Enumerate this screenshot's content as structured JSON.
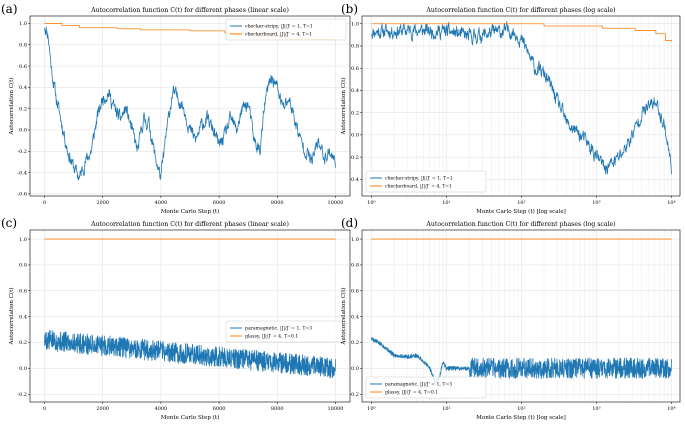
{
  "chart_data": [
    {
      "type": "line",
      "panel": "(a)",
      "title": "Autocorrelation function C(t) for different phases (linear scale)",
      "xlabel": "Monte Carlo Step (t)",
      "ylabel": "Autocorrelation C(t)",
      "xscale": "linear",
      "xlim": [
        -500,
        10500
      ],
      "ylim": [
        -0.62,
        1.07
      ],
      "xticks": [
        0,
        2000,
        4000,
        6000,
        8000,
        10000
      ],
      "yticks": [
        -0.6,
        -0.4,
        -0.2,
        0.0,
        0.2,
        0.4,
        0.6,
        0.8,
        1.0
      ],
      "xtick_labels": [
        "0",
        "2000",
        "4000",
        "6000",
        "8000",
        "10000"
      ],
      "ytick_labels": [
        "-0.6",
        "-0.4",
        "-0.2",
        "0.0",
        "0.2",
        "0.4",
        "0.6",
        "0.8",
        "1.0"
      ],
      "legend_position": "top-right",
      "series": [
        {
          "name": "checker-stripy, |J|/J' = 1, T=1",
          "color": "#1f77b4",
          "style": "noisy",
          "noise": 0.05,
          "seed": 11,
          "anchors": [
            [
              0,
              0.98
            ],
            [
              120,
              0.9
            ],
            [
              250,
              0.55
            ],
            [
              400,
              0.3
            ],
            [
              600,
              0.05
            ],
            [
              800,
              -0.2
            ],
            [
              1000,
              -0.35
            ],
            [
              1200,
              -0.45
            ],
            [
              1400,
              -0.3
            ],
            [
              1600,
              -0.2
            ],
            [
              1800,
              0.1
            ],
            [
              2000,
              0.3
            ],
            [
              2200,
              0.35
            ],
            [
              2400,
              0.2
            ],
            [
              2600,
              0.1
            ],
            [
              2800,
              0.2
            ],
            [
              3000,
              0.0
            ],
            [
              3200,
              -0.2
            ],
            [
              3400,
              0.1
            ],
            [
              3600,
              0.05
            ],
            [
              3800,
              -0.25
            ],
            [
              4000,
              -0.45
            ],
            [
              4200,
              0.0
            ],
            [
              4400,
              0.35
            ],
            [
              4600,
              0.3
            ],
            [
              4800,
              0.2
            ],
            [
              5000,
              0.0
            ],
            [
              5200,
              -0.1
            ],
            [
              5400,
              0.05
            ],
            [
              5600,
              0.1
            ],
            [
              5800,
              0.0
            ],
            [
              6000,
              -0.15
            ],
            [
              6200,
              -0.05
            ],
            [
              6400,
              0.1
            ],
            [
              6600,
              0.0
            ],
            [
              6800,
              0.2
            ],
            [
              7000,
              0.25
            ],
            [
              7200,
              -0.1
            ],
            [
              7400,
              -0.2
            ],
            [
              7600,
              0.3
            ],
            [
              7800,
              0.5
            ],
            [
              8000,
              0.4
            ],
            [
              8200,
              0.2
            ],
            [
              8400,
              0.3
            ],
            [
              8600,
              0.1
            ],
            [
              8800,
              -0.1
            ],
            [
              9000,
              -0.2
            ],
            [
              9200,
              -0.3
            ],
            [
              9400,
              -0.1
            ],
            [
              9600,
              -0.25
            ],
            [
              9800,
              -0.2
            ],
            [
              10000,
              -0.3
            ]
          ]
        },
        {
          "name": "checkerboard, |J|/J' = 4, T=1",
          "color": "#ff7f0e",
          "style": "steps",
          "anchors": [
            [
              0,
              1.0
            ],
            [
              200,
              1.0
            ],
            [
              600,
              0.98
            ],
            [
              1200,
              0.96
            ],
            [
              2500,
              0.95
            ],
            [
              3300,
              0.94
            ],
            [
              5000,
              0.93
            ],
            [
              6200,
              0.91
            ],
            [
              7600,
              0.88
            ],
            [
              8300,
              0.85
            ],
            [
              10000,
              0.84
            ]
          ]
        }
      ]
    },
    {
      "type": "line",
      "panel": "(b)",
      "title": "Autocorrelation function C(t) for different phases (log scale)",
      "xlabel": "Monte Carlo Step (t) [log scale]",
      "ylabel": "Autocorrelation C(t)",
      "xscale": "log",
      "xlim": [
        0.75,
        13000
      ],
      "ylim": [
        -0.55,
        1.07
      ],
      "xticks": [
        1,
        10,
        100,
        1000,
        10000
      ],
      "yticks": [
        -0.4,
        -0.2,
        0.0,
        0.2,
        0.4,
        0.6,
        0.8,
        1.0
      ],
      "xtick_labels": [
        "10⁰",
        "10¹",
        "10²",
        "10³",
        "10⁴"
      ],
      "ytick_labels": [
        "-0.4",
        "-0.2",
        "0.0",
        "0.2",
        "0.4",
        "0.6",
        "0.8",
        "1.0"
      ],
      "legend_position": "bottom-left",
      "series": [
        {
          "name": "checker-stripy, |J|/J' = 1, T=1",
          "color": "#1f77b4",
          "style": "noisy",
          "noise": 0.05,
          "seed": 11,
          "anchors": [
            [
              1,
              0.93
            ],
            [
              3,
              0.94
            ],
            [
              10,
              0.93
            ],
            [
              20,
              0.88
            ],
            [
              40,
              0.92
            ],
            [
              70,
              0.94
            ],
            [
              90,
              0.9
            ],
            [
              120,
              0.75
            ],
            [
              150,
              0.6
            ],
            [
              200,
              0.55
            ],
            [
              300,
              0.3
            ],
            [
              400,
              0.1
            ],
            [
              600,
              0.0
            ],
            [
              1000,
              -0.2
            ],
            [
              1300,
              -0.3
            ],
            [
              2000,
              -0.2
            ],
            [
              3000,
              0.0
            ],
            [
              4000,
              0.2
            ],
            [
              6000,
              0.3
            ],
            [
              8000,
              0.1
            ],
            [
              10000,
              -0.3
            ]
          ]
        },
        {
          "name": "checkerboard, |J|/J' = 4, T=1",
          "color": "#ff7f0e",
          "style": "steps",
          "anchors": [
            [
              1,
              1.0
            ],
            [
              30,
              1.0
            ],
            [
              200,
              0.98
            ],
            [
              1200,
              0.96
            ],
            [
              3300,
              0.94
            ],
            [
              6200,
              0.91
            ],
            [
              8300,
              0.85
            ],
            [
              10000,
              0.84
            ]
          ]
        }
      ]
    },
    {
      "type": "line",
      "panel": "(c)",
      "title": "Autocorrelation function C(t) for different phases (linear scale)",
      "xlabel": "Monte Carlo Step (t)",
      "ylabel": "Autocorrelation C(t)",
      "xscale": "linear",
      "xlim": [
        -500,
        10500
      ],
      "ylim": [
        -0.26,
        1.07
      ],
      "xticks": [
        0,
        2000,
        4000,
        6000,
        8000,
        10000
      ],
      "yticks": [
        -0.2,
        0.0,
        0.2,
        0.4,
        0.6,
        0.8,
        1.0
      ],
      "xtick_labels": [
        "0",
        "2000",
        "4000",
        "6000",
        "8000",
        "10000"
      ],
      "ytick_labels": [
        "-0.2",
        "0.0",
        "0.2",
        "0.4",
        "0.6",
        "0.8",
        "1.0"
      ],
      "legend_position": "center-right",
      "series": [
        {
          "name": "paramagnetic, |J|/J' = 1, T=3",
          "color": "#1f77b4",
          "style": "noise",
          "center": 0.0,
          "noise": 0.08,
          "seed": 5,
          "anchors": [
            [
              0,
              0.22
            ],
            [
              10000,
              0.0
            ]
          ]
        },
        {
          "name": "glassy, |J|/J' = 4, T=0.1",
          "color": "#ff7f0e",
          "style": "steps",
          "anchors": [
            [
              0,
              1.0
            ],
            [
              10000,
              1.0
            ]
          ]
        }
      ]
    },
    {
      "type": "line",
      "panel": "(d)",
      "title": "Autocorrelation function C(t) for different phases (log scale)",
      "xlabel": "Monte Carlo Step (t) [log scale]",
      "ylabel": "Autocorrelation C(t)",
      "xscale": "log",
      "xlim": [
        0.75,
        13000
      ],
      "ylim": [
        -0.26,
        1.07
      ],
      "xticks": [
        1,
        10,
        100,
        1000,
        10000
      ],
      "yticks": [
        -0.2,
        0.0,
        0.2,
        0.4,
        0.6,
        0.8,
        1.0
      ],
      "xtick_labels": [
        "10⁰",
        "10¹",
        "10²",
        "10³",
        "10⁴"
      ],
      "ytick_labels": [
        "-0.2",
        "0.0",
        "0.2",
        "0.4",
        "0.6",
        "0.8",
        "1.0"
      ],
      "legend_position": "bottom-left",
      "series": [
        {
          "name": "paramagnetic, |J|/J' = 1, T=3",
          "color": "#1f77b4",
          "style": "noise",
          "center": 0.0,
          "noise": 0.08,
          "seed": 5,
          "anchors": [
            [
              1,
              0.23
            ],
            [
              2,
              0.1
            ],
            [
              3,
              0.09
            ],
            [
              4,
              0.1
            ],
            [
              5,
              0.05
            ],
            [
              6,
              0.0
            ],
            [
              7,
              -0.1
            ],
            [
              8,
              -0.08
            ],
            [
              9,
              0.05
            ],
            [
              10,
              0.0
            ],
            [
              20,
              0.0
            ],
            [
              10000,
              0.0
            ]
          ]
        },
        {
          "name": "glassy, |J|/J' = 4, T=0.1",
          "color": "#ff7f0e",
          "style": "steps",
          "anchors": [
            [
              1,
              1.0
            ],
            [
              10000,
              1.0
            ]
          ]
        }
      ]
    }
  ]
}
